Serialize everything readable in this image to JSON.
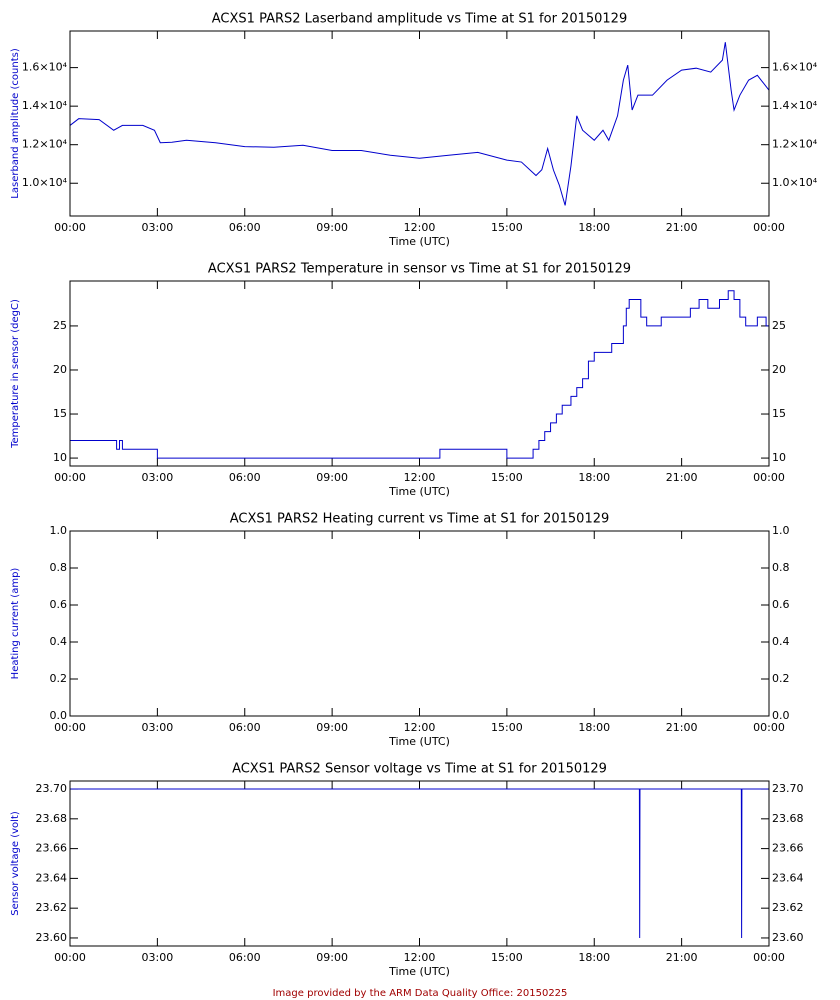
{
  "chart_data": [
    {
      "type": "line",
      "title": "ACXS1 PARS2 Laserband amplitude vs Time at S1 for 20150129",
      "xlabel": "Time (UTC)",
      "ylabel": "Laserband amplitude (counts)",
      "color": "#0000cc",
      "xlim": [
        0,
        24
      ],
      "xticks": [
        {
          "value": 0,
          "label": "00:00"
        },
        {
          "value": 3,
          "label": "03:00"
        },
        {
          "value": 6,
          "label": "06:00"
        },
        {
          "value": 9,
          "label": "09:00"
        },
        {
          "value": 12,
          "label": "12:00"
        },
        {
          "value": 15,
          "label": "15:00"
        },
        {
          "value": 18,
          "label": "18:00"
        },
        {
          "value": 21,
          "label": "21:00"
        },
        {
          "value": 24,
          "label": "00:00"
        }
      ],
      "ylim": [
        8300,
        17900
      ],
      "yticks": [
        {
          "value": 10000,
          "label": "1.0×10⁴"
        },
        {
          "value": 12000,
          "label": "1.2×10⁴"
        },
        {
          "value": 14000,
          "label": "1.4×10⁴"
        },
        {
          "value": 16000,
          "label": "1.6×10⁴"
        }
      ],
      "x": [
        0,
        0.3,
        1.0,
        1.5,
        1.8,
        2.0,
        2.5,
        2.9,
        3.1,
        3.5,
        4.0,
        5.0,
        6.0,
        7.0,
        8.0,
        9.0,
        10.0,
        11.0,
        12.0,
        13.0,
        14.0,
        15.0,
        15.5,
        16.0,
        16.2,
        16.4,
        16.6,
        16.8,
        17.0,
        17.2,
        17.4,
        17.6,
        18.0,
        18.3,
        18.5,
        18.8,
        19.0,
        19.15,
        19.3,
        19.5,
        20.0,
        20.5,
        21.0,
        21.5,
        22.0,
        22.4,
        22.5,
        22.7,
        22.8,
        23.0,
        23.3,
        23.6,
        24.0
      ],
      "values": [
        13000,
        13350,
        13300,
        12750,
        13000,
        13000,
        13000,
        12750,
        12100,
        12130,
        12230,
        12100,
        11900,
        11870,
        11970,
        11700,
        11700,
        11450,
        11300,
        11450,
        11600,
        11200,
        11100,
        10400,
        10700,
        11800,
        10680,
        9900,
        8850,
        10900,
        13500,
        12750,
        12230,
        12750,
        12230,
        13500,
        15350,
        16130,
        13800,
        14570,
        14570,
        15350,
        15870,
        15970,
        15770,
        16390,
        17320,
        14830,
        13800,
        14570,
        15350,
        15600,
        14830
      ]
    },
    {
      "type": "line",
      "step": true,
      "title": "ACXS1 PARS2 Temperature in sensor vs Time at S1 for 20150129",
      "xlabel": "Time (UTC)",
      "ylabel": "Temperature in sensor (degC)",
      "color": "#0000cc",
      "xlim": [
        0,
        24
      ],
      "xticks": [
        {
          "value": 0,
          "label": "00:00"
        },
        {
          "value": 3,
          "label": "03:00"
        },
        {
          "value": 6,
          "label": "06:00"
        },
        {
          "value": 9,
          "label": "09:00"
        },
        {
          "value": 12,
          "label": "12:00"
        },
        {
          "value": 15,
          "label": "15:00"
        },
        {
          "value": 18,
          "label": "18:00"
        },
        {
          "value": 21,
          "label": "21:00"
        },
        {
          "value": 24,
          "label": "00:00"
        }
      ],
      "ylim": [
        9.1,
        30.1
      ],
      "yticks": [
        10,
        15,
        20,
        25
      ],
      "x": [
        0,
        1.6,
        1.7,
        1.8,
        1.9,
        3.0,
        12.7,
        15.0,
        15.7,
        15.9,
        16.1,
        16.3,
        16.5,
        16.7,
        16.9,
        17.2,
        17.4,
        17.6,
        17.8,
        18.0,
        18.6,
        19.0,
        19.1,
        19.2,
        19.6,
        19.8,
        20.3,
        21.3,
        21.6,
        21.9,
        22.3,
        22.6,
        22.8,
        23.0,
        23.2,
        23.6,
        23.9,
        24
      ],
      "values": [
        12,
        11,
        12,
        11,
        11,
        10,
        11,
        10,
        10,
        11,
        12,
        13,
        14,
        15,
        16,
        17,
        18,
        19,
        21,
        22,
        23,
        25,
        27,
        28,
        26,
        25,
        26,
        27,
        28,
        27,
        28,
        29,
        28,
        26,
        25,
        26,
        25,
        25
      ]
    },
    {
      "type": "line",
      "title": "ACXS1 PARS2 Heating current vs Time at S1 for 20150129",
      "xlabel": "Time (UTC)",
      "ylabel": "Heating current (amp)",
      "color": "#0000cc",
      "xlim": [
        0,
        24
      ],
      "xticks": [
        {
          "value": 0,
          "label": "00:00"
        },
        {
          "value": 3,
          "label": "03:00"
        },
        {
          "value": 6,
          "label": "06:00"
        },
        {
          "value": 9,
          "label": "09:00"
        },
        {
          "value": 12,
          "label": "12:00"
        },
        {
          "value": 15,
          "label": "15:00"
        },
        {
          "value": 18,
          "label": "18:00"
        },
        {
          "value": 21,
          "label": "21:00"
        },
        {
          "value": 24,
          "label": "00:00"
        }
      ],
      "ylim": [
        0,
        1
      ],
      "yticks": [
        {
          "value": 0,
          "label": "0.0"
        },
        0.2,
        0.4,
        0.6,
        0.8,
        {
          "value": 1,
          "label": "1.0"
        }
      ]
    },
    {
      "type": "line",
      "title": "ACXS1 PARS2 Sensor voltage vs Time at S1 for 20150129",
      "xlabel": "Time (UTC)",
      "ylabel": "Sensor voltage (volt)",
      "color": "#0000cc",
      "xlim": [
        0,
        24
      ],
      "xticks": [
        {
          "value": 0,
          "label": "00:00"
        },
        {
          "value": 3,
          "label": "03:00"
        },
        {
          "value": 6,
          "label": "06:00"
        },
        {
          "value": 9,
          "label": "09:00"
        },
        {
          "value": 12,
          "label": "12:00"
        },
        {
          "value": 15,
          "label": "15:00"
        },
        {
          "value": 18,
          "label": "18:00"
        },
        {
          "value": 21,
          "label": "21:00"
        },
        {
          "value": 24,
          "label": "00:00"
        }
      ],
      "ylim": [
        23.5946,
        23.7054
      ],
      "yticks": [
        {
          "value": 23.6,
          "label": "23.60"
        },
        {
          "value": 23.62,
          "label": "23.62"
        },
        {
          "value": 23.64,
          "label": "23.64"
        },
        {
          "value": 23.66,
          "label": "23.66"
        },
        {
          "value": 23.68,
          "label": "23.68"
        },
        {
          "value": 23.7,
          "label": "23.70"
        }
      ],
      "x": [
        0,
        19.55,
        19.56,
        19.57,
        23.05,
        23.06,
        23.07,
        24
      ],
      "values": [
        23.7,
        23.7,
        23.6,
        23.7,
        23.7,
        23.6,
        23.7,
        23.7
      ]
    }
  ],
  "footer": "Image provided by the ARM Data Quality Office: 20150225"
}
